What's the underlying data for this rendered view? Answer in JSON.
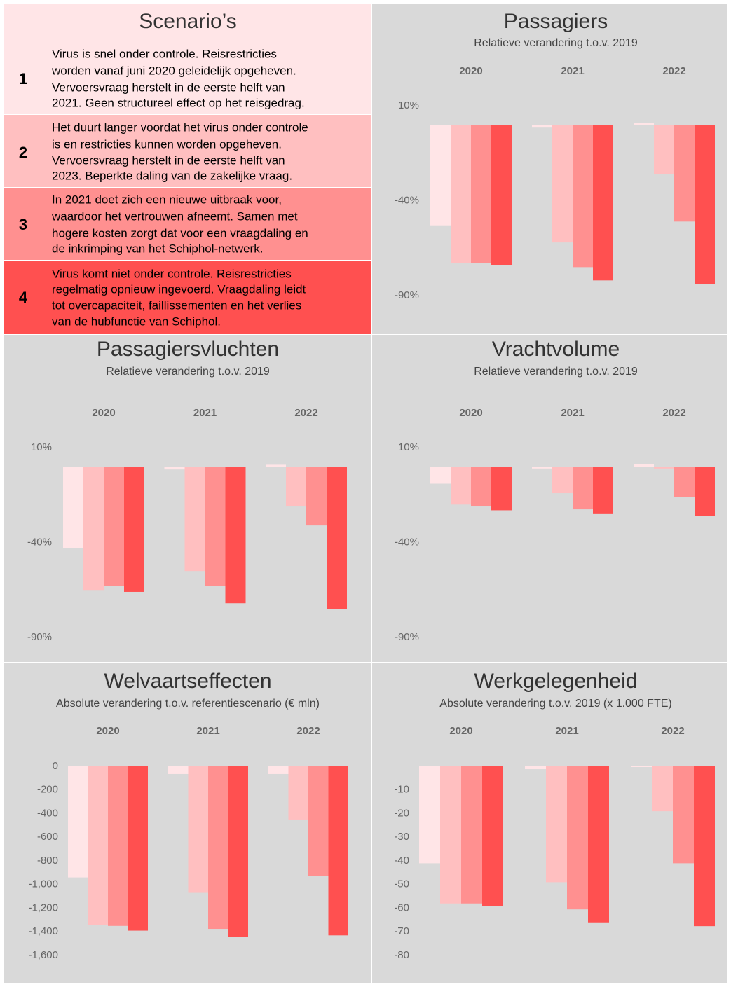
{
  "scenarios": {
    "title": "Scenario’s",
    "items": [
      {
        "number": "1",
        "color": "#ffe5e7",
        "lines": [
          "Virus is snel onder controle. Reisrestricties",
          "worden vanaf juni 2020 geleidelijk opgeheven.",
          "Vervoersvraag herstelt in de eerste helft van",
          "2021. Geen structureel effect op het reisgedrag."
        ]
      },
      {
        "number": "2",
        "color": "#ffbfc0",
        "lines": [
          "Het duurt langer voordat het virus onder controle",
          "is en restricties kunnen worden opgeheven.",
          "Vervoersvraag herstelt in de eerste helft van",
          "2023. Beperkte daling van de zakelijke vraag."
        ]
      },
      {
        "number": "3",
        "color": "#ff9090",
        "lines": [
          "In 2021 doet zich een nieuwe uitbraak voor,",
          "waardoor het vertrouwen afneemt. Samen met",
          "hogere kosten zorgt dat voor een vraagdaling en",
          "de inkrimping van het Schiphol-netwerk."
        ]
      },
      {
        "number": "4",
        "color": "#ff5050",
        "lines": [
          "Virus komt niet onder controle. Reisrestricties",
          "regelmatig opnieuw ingevoerd. Vraagdaling leidt",
          "tot overcapaciteit, faillissementen en het verlies",
          "van de hubfunctie van Schiphol."
        ]
      }
    ]
  },
  "chart_data": [
    {
      "type": "bar",
      "title": "Passagiers",
      "subtitle": "Relatieve verandering t.o.v. 2019",
      "categories": [
        "2020",
        "2021",
        "2022"
      ],
      "series": [
        {
          "color": "#ffe5e7",
          "values": [
            -53,
            -1.5,
            1
          ]
        },
        {
          "color": "#ffbfc0",
          "values": [
            -73,
            -62,
            -26
          ]
        },
        {
          "color": "#ff9090",
          "values": [
            -73,
            -75,
            -51
          ]
        },
        {
          "color": "#ff5050",
          "values": [
            -74,
            -82,
            -84
          ]
        }
      ],
      "ylim": [
        -90,
        10
      ],
      "yticks": [
        {
          "value": 10,
          "label": "10%"
        },
        {
          "value": -40,
          "label": "-40%"
        },
        {
          "value": -90,
          "label": "-90%"
        }
      ]
    },
    {
      "type": "bar",
      "title": "Passagiersvluchten",
      "subtitle": "Relatieve verandering t.o.v. 2019",
      "categories": [
        "2020",
        "2021",
        "2022"
      ],
      "series": [
        {
          "color": "#ffe5e7",
          "values": [
            -43,
            -1.5,
            1
          ]
        },
        {
          "color": "#ffbfc0",
          "values": [
            -65,
            -55,
            -21
          ]
        },
        {
          "color": "#ff9090",
          "values": [
            -63,
            -63,
            -31
          ]
        },
        {
          "color": "#ff5050",
          "values": [
            -66,
            -72,
            -75
          ]
        }
      ],
      "ylim": [
        -90,
        10
      ],
      "yticks": [
        {
          "value": 10,
          "label": "10%"
        },
        {
          "value": -40,
          "label": "-40%"
        },
        {
          "value": -90,
          "label": "-90%"
        }
      ]
    },
    {
      "type": "bar",
      "title": "Vrachtvolume",
      "subtitle": "Relatieve verandering t.o.v. 2019",
      "categories": [
        "2020",
        "2021",
        "2022"
      ],
      "series": [
        {
          "color": "#ffe5e7",
          "values": [
            -9,
            -1,
            1.5
          ]
        },
        {
          "color": "#ffbfc0",
          "values": [
            -20,
            -14,
            -1
          ]
        },
        {
          "color": "#ff9090",
          "values": [
            -21,
            -22.5,
            -16
          ]
        },
        {
          "color": "#ff5050",
          "values": [
            -23,
            -25,
            -26
          ]
        }
      ],
      "ylim": [
        -90,
        10
      ],
      "yticks": [
        {
          "value": 10,
          "label": "10%"
        },
        {
          "value": -40,
          "label": "-40%"
        },
        {
          "value": -90,
          "label": "-90%"
        }
      ]
    },
    {
      "type": "bar",
      "title": "Welvaartseffecten",
      "subtitle": "Absolute verandering t.o.v. referentiescenario (€ mln)",
      "categories": [
        "2020",
        "2021",
        "2022"
      ],
      "series": [
        {
          "color": "#ffe5e7",
          "values": [
            -940,
            -65,
            -65
          ]
        },
        {
          "color": "#ffbfc0",
          "values": [
            -1340,
            -1070,
            -450
          ]
        },
        {
          "color": "#ff9090",
          "values": [
            -1350,
            -1375,
            -925
          ]
        },
        {
          "color": "#ff5050",
          "values": [
            -1390,
            -1445,
            -1430
          ]
        }
      ],
      "ylim": [
        -1600,
        0
      ],
      "yticks": [
        0,
        -200,
        -400,
        -600,
        -800,
        {
          "value": -1000,
          "label": "-1,000"
        },
        {
          "value": -1200,
          "label": "-1,200"
        },
        {
          "value": -1400,
          "label": "-1,400"
        },
        {
          "value": -1600,
          "label": "-1,600"
        }
      ]
    },
    {
      "type": "bar",
      "title": "Werkgelegenheid",
      "subtitle": "Absolute verandering t.o.v. 2019 (x 1.000 FTE)",
      "categories": [
        "2020",
        "2021",
        "2022"
      ],
      "series": [
        {
          "color": "#ffe5e7",
          "values": [
            -41,
            -1.2,
            -0.3
          ]
        },
        {
          "color": "#ffbfc0",
          "values": [
            -58,
            -49,
            -19
          ]
        },
        {
          "color": "#ff9090",
          "values": [
            -58,
            -60.5,
            -41
          ]
        },
        {
          "color": "#ff5050",
          "values": [
            -59,
            -66,
            -67.6
          ]
        }
      ],
      "ylim": [
        -80,
        0
      ],
      "yticks": [
        -10,
        -20,
        -30,
        -40,
        -50,
        -60,
        -70,
        -80
      ]
    }
  ]
}
